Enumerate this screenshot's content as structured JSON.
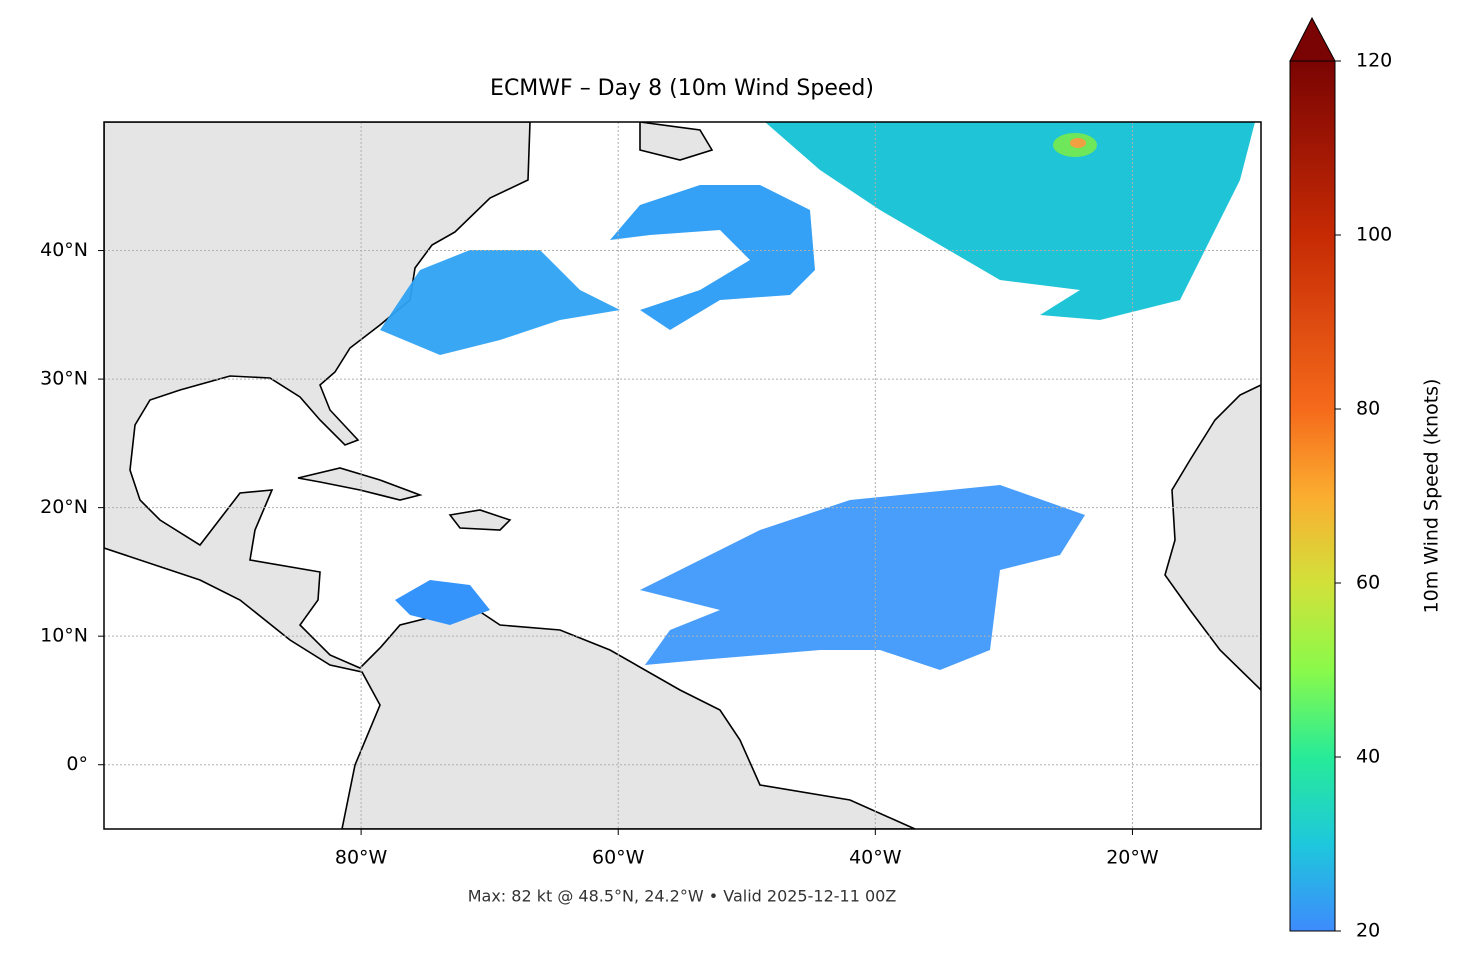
{
  "title": "ECMWF – Day 8 (10m Wind Speed)",
  "footer": "Max: 82 kt @ 48.5°N, 24.2°W • Valid 2025-12-11 00Z",
  "map": {
    "xlim": [
      -100,
      -10
    ],
    "ylim": [
      -5,
      50
    ],
    "xticks": [
      {
        "value": -80,
        "label": "80°W"
      },
      {
        "value": -60,
        "label": "60°W"
      },
      {
        "value": -40,
        "label": "40°W"
      },
      {
        "value": -20,
        "label": "20°W"
      }
    ],
    "yticks": [
      {
        "value": 0,
        "label": "0°"
      },
      {
        "value": 10,
        "label": "10°N"
      },
      {
        "value": 20,
        "label": "20°N"
      },
      {
        "value": 30,
        "label": "30°N"
      },
      {
        "value": 40,
        "label": "40°N"
      }
    ],
    "grid": true
  },
  "colorbar": {
    "label": "10m Wind Speed (knots)",
    "lim": [
      20,
      120
    ],
    "ticks": [
      20,
      40,
      60,
      80,
      100,
      120
    ]
  }
}
